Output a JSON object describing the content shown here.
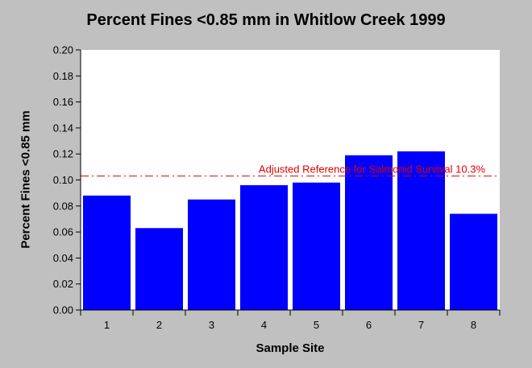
{
  "chart_data": {
    "type": "bar",
    "title": "Percent Fines <0.85 mm in Whitlow Creek 1999",
    "xlabel": "Sample Site",
    "ylabel": "Percent Fines <0.85 mm",
    "categories": [
      "1",
      "2",
      "3",
      "4",
      "5",
      "6",
      "7",
      "8"
    ],
    "values": [
      0.088,
      0.063,
      0.085,
      0.096,
      0.098,
      0.119,
      0.122,
      0.074
    ],
    "ylim": [
      0,
      0.2
    ],
    "yticks": [
      "0.00",
      "0.02",
      "0.04",
      "0.06",
      "0.08",
      "0.10",
      "0.12",
      "0.14",
      "0.16",
      "0.18",
      "0.20"
    ],
    "grid": false,
    "reference_line": {
      "value": 0.103,
      "label": "Adjusted Reference for Salmonid Survival 10.3%",
      "color": "#e00000"
    },
    "bar_color": "#0000ff",
    "plot_background": "#ffffff",
    "page_background": "#c0c0c0"
  }
}
